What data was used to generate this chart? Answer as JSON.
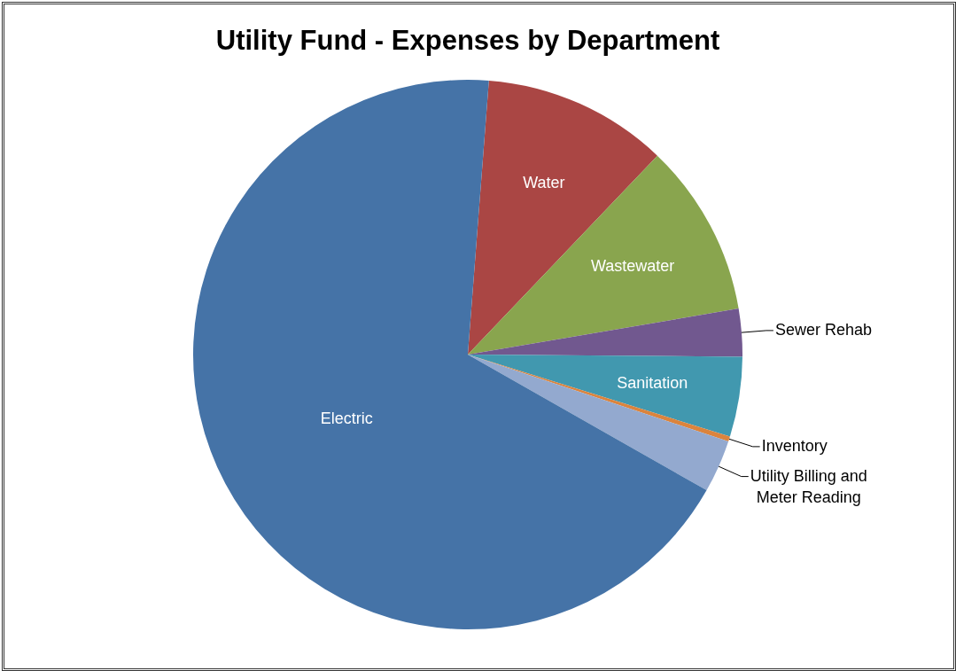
{
  "chart_data": {
    "type": "pie",
    "title": "Utility Fund - Expenses by Department",
    "categories": [
      "Water",
      "Wastewater",
      "Sewer Rehab",
      "Sanitation",
      "Inventory",
      "Utility Billing and Meter Reading",
      "Electric"
    ],
    "values": [
      10.9,
      10.2,
      2.8,
      4.7,
      0.3,
      3.1,
      68.0
    ],
    "colors": [
      "#aa4644",
      "#89a54e",
      "#71588f",
      "#4198af",
      "#db843d",
      "#93a9cf",
      "#4573a7"
    ],
    "legend": false
  }
}
